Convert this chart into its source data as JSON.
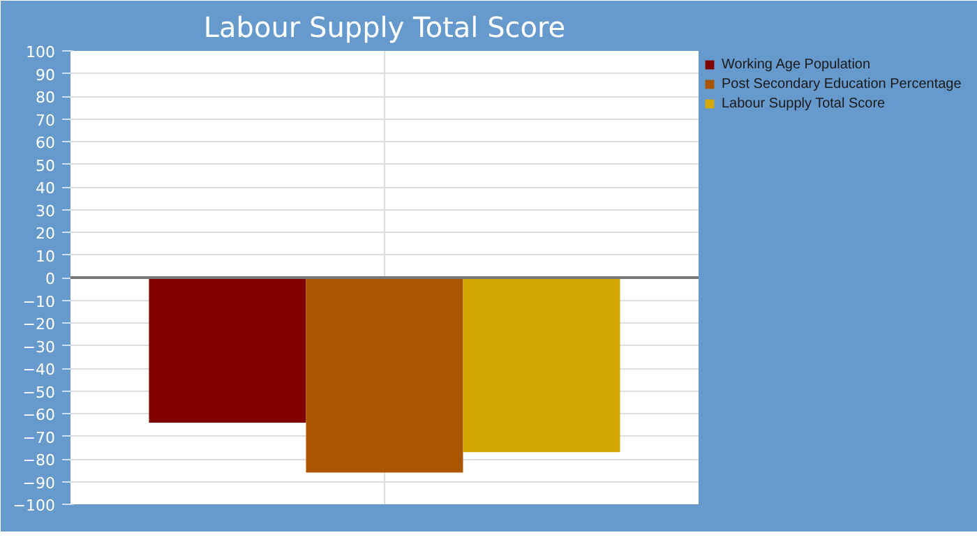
{
  "chart_data": {
    "type": "bar",
    "title": "Labour Supply Total Score",
    "categories": [
      null
    ],
    "series": [
      {
        "name": "Working Age Population",
        "color": "#800000",
        "values": [
          -64
        ]
      },
      {
        "name": "Post Secondary Education Percentage",
        "color": "#aa5500",
        "values": [
          -86
        ]
      },
      {
        "name": "Labour Supply Total Score",
        "color": "#d4a800",
        "values": [
          -77
        ]
      }
    ],
    "ylim": [
      -100,
      100
    ],
    "yticks": [
      -100,
      -90,
      -80,
      -70,
      -60,
      -50,
      -40,
      -30,
      -20,
      -10,
      0,
      10,
      20,
      30,
      40,
      50,
      60,
      70,
      80,
      90,
      100
    ],
    "ref_lines": [
      {
        "axis": "y",
        "value": 0,
        "color": "#777777"
      }
    ],
    "grid": true,
    "legend": "right"
  }
}
